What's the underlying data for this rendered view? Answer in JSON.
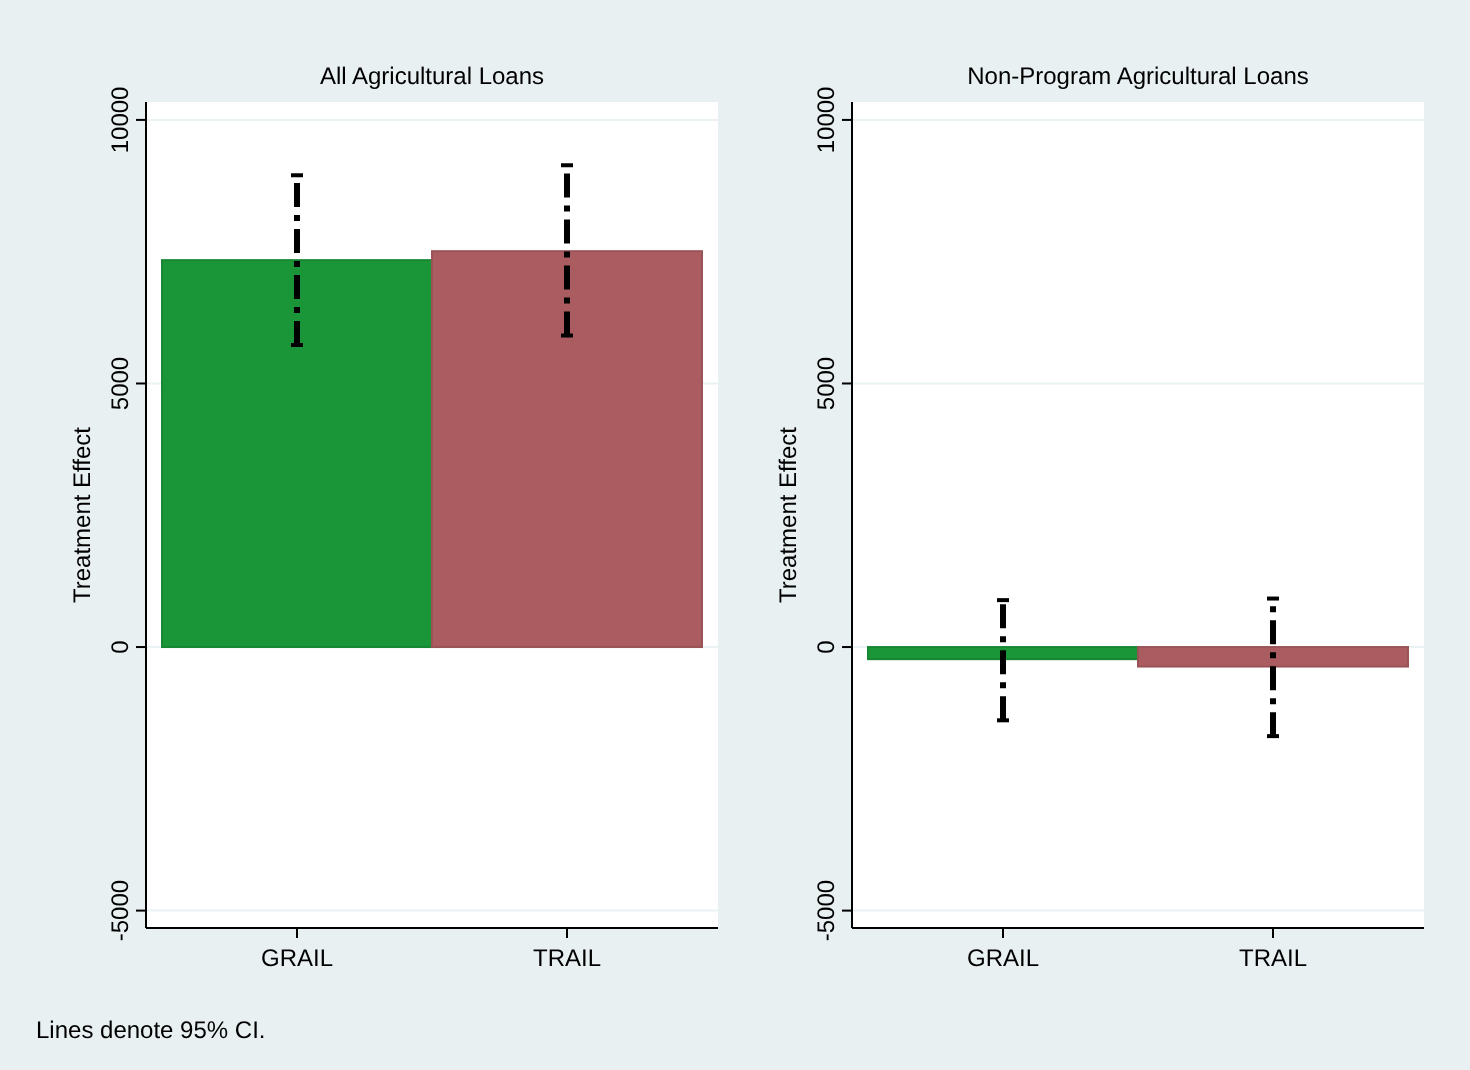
{
  "chart_data": [
    {
      "type": "bar",
      "title": "All Agricultural Loans",
      "ylabel": "Treatment Effect",
      "categories": [
        "GRAIL",
        "TRAIL"
      ],
      "values": [
        7340,
        7510
      ],
      "colors": [
        "#1a9639",
        "#ab5c61"
      ],
      "errors": [
        [
          5730,
          8950
        ],
        [
          5910,
          9140
        ]
      ],
      "ylim": [
        -5330,
        10340
      ],
      "yticks": [
        -5000,
        0,
        5000,
        10000
      ],
      "grid": "y",
      "annotations": [
        "Lines denote 95% CI."
      ]
    },
    {
      "type": "bar",
      "title": "Non-Program Agricultural Loans",
      "ylabel": "Treatment Effect",
      "categories": [
        "GRAIL",
        "TRAIL"
      ],
      "values": [
        -230,
        -370
      ],
      "colors": [
        "#1a9639",
        "#ab5c61"
      ],
      "errors": [
        [
          -1390,
          890
        ],
        [
          -1690,
          920
        ]
      ],
      "ylim": [
        -5330,
        10340
      ],
      "yticks": [
        -5000,
        0,
        5000,
        10000
      ],
      "grid": "y"
    }
  ]
}
